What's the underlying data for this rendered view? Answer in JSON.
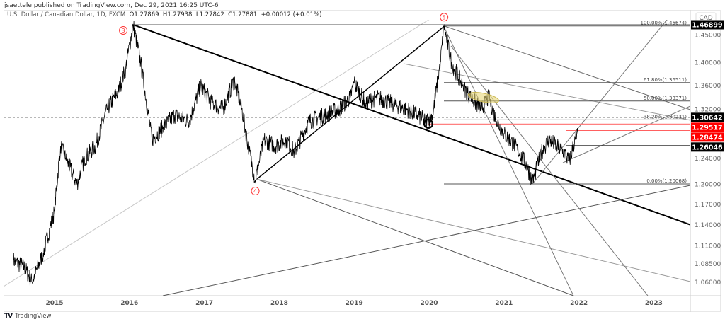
{
  "header": {
    "published": "jsaettele published on TradingView.com, Dec 29, 2021 16:25 UTC-6",
    "symbol": "U.S. Dollar / Canadian Dollar, 1D, FXCM",
    "open": "O1.27869",
    "high": "H1.27938",
    "low": "L1.27842",
    "close": "C1.27881",
    "change": "+0.00012 (+0.01%)"
  },
  "footer": {
    "brand": "TradingView",
    "logo": "TV"
  },
  "chart_data": {
    "type": "line",
    "currency": "CAD",
    "yscale": "log",
    "ylim": [
      1.045,
      1.49
    ],
    "xlim": [
      2014.45,
      2023.5
    ],
    "x_ticks": [
      "2015",
      "2016",
      "2017",
      "2018",
      "2019",
      "2020",
      "2021",
      "2022",
      "2023"
    ],
    "y_ticks": [
      "1.45000",
      "1.40000",
      "1.36000",
      "1.32000",
      "1.24000",
      "1.20000",
      "1.17000",
      "1.14000",
      "1.11000",
      "1.08500",
      "1.06000"
    ],
    "price_labels": [
      {
        "text": "1.46899",
        "value": 1.46899,
        "bg": "#000000"
      },
      {
        "text": "1.30642",
        "value": 1.30642,
        "bg": "#000000"
      },
      {
        "text": "1.29517",
        "value": 1.29517,
        "bg": "#ff0000"
      },
      {
        "text": "1.28474",
        "value": 1.28474,
        "bg": "#ff0000"
      },
      {
        "text": "1.26046",
        "value": 1.26046,
        "bg": "#000000"
      }
    ],
    "series": [
      {
        "x": [
          2014.45,
          2014.6,
          2014.7,
          2014.85,
          2015.0,
          2015.08,
          2015.15,
          2015.3,
          2015.4,
          2015.55,
          2015.7,
          2015.85,
          2015.95,
          2016.05,
          2016.15,
          2016.3,
          2016.45,
          2016.6,
          2016.8,
          2016.95,
          2017.1,
          2017.25,
          2017.4,
          2017.5,
          2017.6,
          2017.68,
          2017.8,
          2017.95,
          2018.1,
          2018.2,
          2018.4,
          2018.6,
          2018.8,
          2018.95,
          2019.0,
          2019.15,
          2019.3,
          2019.5,
          2019.7,
          2019.85,
          2019.95,
          2020.05,
          2020.15,
          2020.2,
          2020.3,
          2020.45,
          2020.55,
          2020.7,
          2020.8,
          2020.9,
          2021.0,
          2021.15,
          2021.3,
          2021.38,
          2021.5,
          2021.6,
          2021.7,
          2021.8,
          2021.87,
          2021.95,
          2021.99
        ],
        "y": [
          1.09,
          1.08,
          1.06,
          1.1,
          1.16,
          1.26,
          1.24,
          1.2,
          1.24,
          1.26,
          1.32,
          1.35,
          1.39,
          1.469,
          1.4,
          1.27,
          1.29,
          1.31,
          1.3,
          1.36,
          1.33,
          1.32,
          1.37,
          1.32,
          1.25,
          1.206,
          1.27,
          1.26,
          1.27,
          1.25,
          1.3,
          1.31,
          1.32,
          1.34,
          1.365,
          1.33,
          1.34,
          1.33,
          1.32,
          1.31,
          1.3,
          1.31,
          1.4,
          1.466,
          1.4,
          1.36,
          1.34,
          1.32,
          1.34,
          1.3,
          1.28,
          1.26,
          1.23,
          1.203,
          1.25,
          1.27,
          1.26,
          1.25,
          1.235,
          1.27,
          1.279
        ]
      }
    ],
    "fibonacci": [
      {
        "text": "100.00%(1.46674)",
        "value": 1.46674
      },
      {
        "text": "61.80%(1.36511)",
        "value": 1.36511
      },
      {
        "text": "50.00%(1.33371)",
        "value": 1.33371
      },
      {
        "text": "38.20%(1.30231)",
        "value": 1.30231
      },
      {
        "text": "0.00%(1.20068)",
        "value": 1.20068
      }
    ],
    "wave_labels": [
      {
        "text": "3",
        "x": 2016.05,
        "y": 1.469
      },
      {
        "text": "4",
        "x": 2017.68,
        "y": 1.206
      },
      {
        "text": "5",
        "x": 2020.2,
        "y": 1.466
      }
    ],
    "colors": {
      "price": "#000000",
      "wave_label": "#ff3333",
      "red_level": "#ff0000",
      "highlight": "#e8d77a"
    }
  }
}
